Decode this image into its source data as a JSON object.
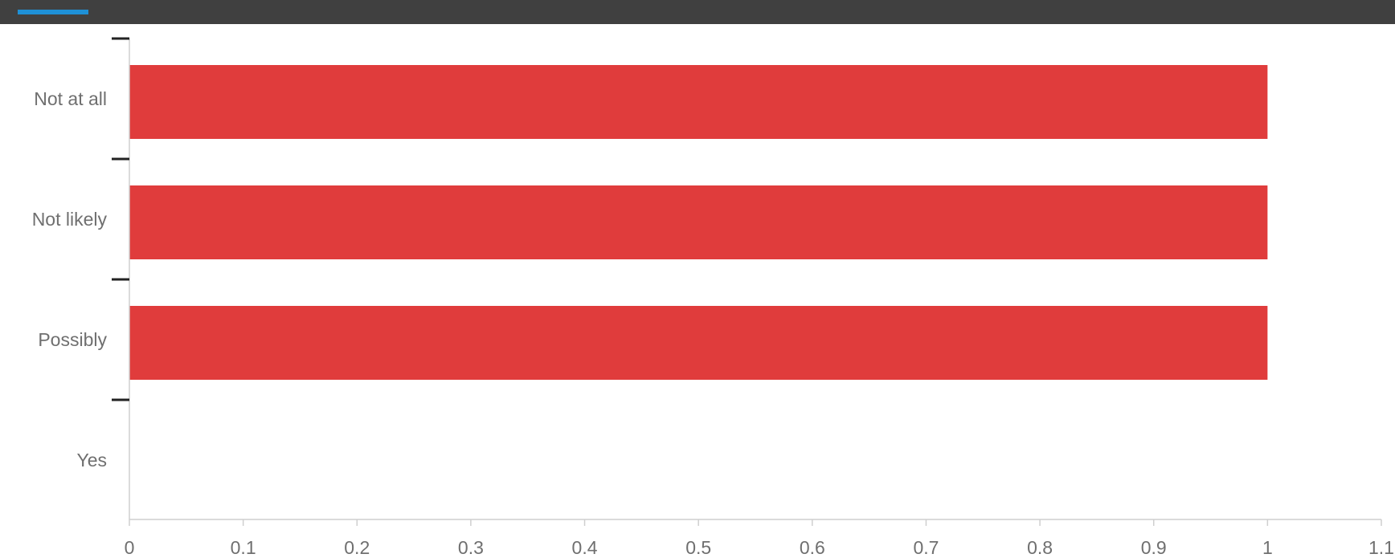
{
  "header": {
    "accent_color": "#1e90d6",
    "bar_color": "#404040"
  },
  "chart_data": {
    "type": "bar",
    "orientation": "horizontal",
    "categories": [
      "Not at all",
      "Not likely",
      "Possibly",
      "Yes"
    ],
    "values": [
      1,
      1,
      1,
      0
    ],
    "xlim": [
      0,
      1.1
    ],
    "xticks": [
      "0",
      "0.1",
      "0.2",
      "0.3",
      "0.4",
      "0.5",
      "0.6",
      "0.7",
      "0.8",
      "0.9",
      "1",
      "1.1"
    ],
    "title": "",
    "xlabel": "",
    "ylabel": "",
    "grid": false,
    "bar_color": "#e03c3c",
    "axis_color": "#cfcfcf"
  }
}
